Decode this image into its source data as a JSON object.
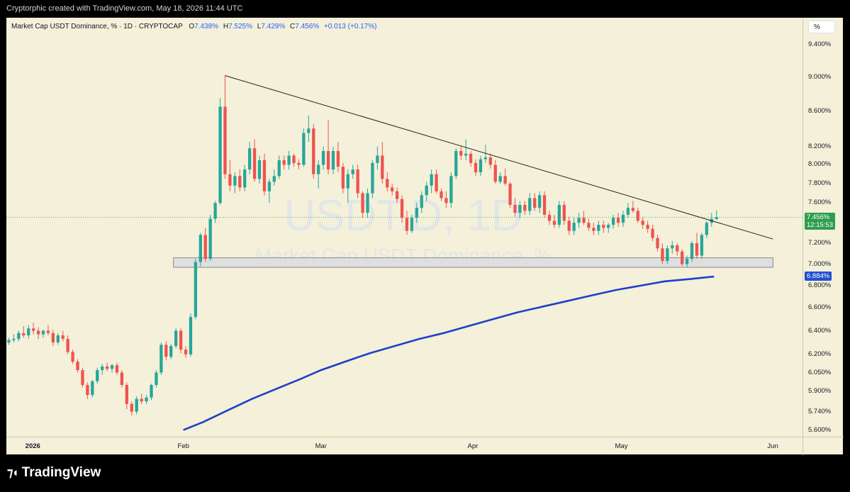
{
  "header": {
    "caption": "Cryptorphic created with TradingView.com, May 18, 2026 11:44 UTC"
  },
  "legend": {
    "symbol": "Market Cap USDT Dominance, % · 1D · CRYPTOCAP",
    "o_label": "O",
    "o_value": "7.438%",
    "h_label": "H",
    "h_value": "7.525%",
    "l_label": "L",
    "l_value": "7.429%",
    "c_label": "C",
    "c_value": "7.456%",
    "change": "+0.013 (+0.17%)"
  },
  "scale_button": "%",
  "watermark": {
    "line1": "USDT.D, 1D",
    "line2": "Market Cap USDT Dominance, %"
  },
  "price_tags": {
    "last": "7.456%",
    "countdown": "12:15:53",
    "ma": "6.884%",
    "last_color": "#2e9e4d",
    "ma_color": "#1f4fd1"
  },
  "branding": {
    "logo_text": "TradingView",
    "logo_icon": "tradingview-logo-icon"
  },
  "colors": {
    "up": "#26a69a",
    "down": "#ef5350",
    "ma": "#1f3fc9",
    "trendline": "#222222",
    "support_zone": "#d9dae2"
  },
  "chart_data": {
    "type": "candlestick",
    "title": "Market Cap USDT Dominance, %",
    "interval": "1D",
    "source": "CRYPTOCAP",
    "y_axis": {
      "scale": "log",
      "ylim": [
        5.55,
        9.75
      ],
      "ticks": [
        "9.400%",
        "9.000%",
        "8.600%",
        "8.200%",
        "8.000%",
        "7.800%",
        "7.600%",
        "7.200%",
        "7.000%",
        "6.800%",
        "6.600%",
        "6.400%",
        "6.200%",
        "6.050%",
        "5.900%",
        "5.740%",
        "5.600%"
      ]
    },
    "x_axis": {
      "range": [
        "2025-12-27",
        "2026-06-07"
      ],
      "ticks": [
        {
          "date": "2026-01-01",
          "label": "2026",
          "bold": true
        },
        {
          "date": "2026-02-01",
          "label": "Feb",
          "bold": false
        },
        {
          "date": "2026-03-01",
          "label": "Mar",
          "bold": false
        },
        {
          "date": "2026-04-01",
          "label": "Apr",
          "bold": false
        },
        {
          "date": "2026-05-01",
          "label": "May",
          "bold": false
        },
        {
          "date": "2026-06-01",
          "label": "Jun",
          "bold": false
        }
      ]
    },
    "candles": [
      [
        "2025-12-27",
        6.3,
        6.34,
        6.28,
        6.32
      ],
      [
        "2025-12-28",
        6.32,
        6.37,
        6.3,
        6.33
      ],
      [
        "2025-12-29",
        6.33,
        6.4,
        6.31,
        6.38
      ],
      [
        "2025-12-30",
        6.38,
        6.44,
        6.34,
        6.36
      ],
      [
        "2025-12-31",
        6.36,
        6.45,
        6.33,
        6.42
      ],
      [
        "2026-01-01",
        6.42,
        6.47,
        6.37,
        6.4
      ],
      [
        "2026-01-02",
        6.4,
        6.43,
        6.33,
        6.37
      ],
      [
        "2026-01-03",
        6.37,
        6.41,
        6.34,
        6.4
      ],
      [
        "2026-01-04",
        6.4,
        6.45,
        6.36,
        6.38
      ],
      [
        "2026-01-05",
        6.38,
        6.41,
        6.27,
        6.3
      ],
      [
        "2026-01-06",
        6.3,
        6.38,
        6.28,
        6.36
      ],
      [
        "2026-01-07",
        6.36,
        6.4,
        6.31,
        6.33
      ],
      [
        "2026-01-08",
        6.33,
        6.36,
        6.2,
        6.22
      ],
      [
        "2026-01-09",
        6.22,
        6.24,
        6.12,
        6.14
      ],
      [
        "2026-01-10",
        6.14,
        6.16,
        6.05,
        6.07
      ],
      [
        "2026-01-11",
        6.07,
        6.09,
        5.93,
        5.95
      ],
      [
        "2026-01-12",
        5.95,
        5.97,
        5.84,
        5.87
      ],
      [
        "2026-01-13",
        5.87,
        5.99,
        5.85,
        5.98
      ],
      [
        "2026-01-14",
        5.98,
        6.09,
        5.96,
        6.07
      ],
      [
        "2026-01-15",
        6.07,
        6.12,
        6.03,
        6.1
      ],
      [
        "2026-01-16",
        6.1,
        6.13,
        6.06,
        6.08
      ],
      [
        "2026-01-17",
        6.08,
        6.12,
        6.05,
        6.11
      ],
      [
        "2026-01-18",
        6.11,
        6.13,
        6.03,
        6.05
      ],
      [
        "2026-01-19",
        6.05,
        6.07,
        5.93,
        5.95
      ],
      [
        "2026-01-20",
        5.95,
        5.97,
        5.76,
        5.8
      ],
      [
        "2026-01-21",
        5.8,
        5.82,
        5.71,
        5.74
      ],
      [
        "2026-01-22",
        5.74,
        5.86,
        5.72,
        5.84
      ],
      [
        "2026-01-23",
        5.84,
        5.88,
        5.8,
        5.82
      ],
      [
        "2026-01-24",
        5.82,
        5.87,
        5.8,
        5.85
      ],
      [
        "2026-01-25",
        5.85,
        5.96,
        5.83,
        5.95
      ],
      [
        "2026-01-26",
        5.95,
        6.07,
        5.93,
        6.05
      ],
      [
        "2026-01-27",
        6.05,
        6.3,
        6.03,
        6.28
      ],
      [
        "2026-01-28",
        6.28,
        6.31,
        6.15,
        6.18
      ],
      [
        "2026-01-29",
        6.18,
        6.29,
        6.16,
        6.27
      ],
      [
        "2026-01-30",
        6.27,
        6.42,
        6.25,
        6.4
      ],
      [
        "2026-01-31",
        6.4,
        6.42,
        6.21,
        6.24
      ],
      [
        "2026-02-01",
        6.24,
        6.27,
        6.17,
        6.2
      ],
      [
        "2026-02-02",
        6.2,
        6.55,
        6.18,
        6.52
      ],
      [
        "2026-02-03",
        6.52,
        7.05,
        6.5,
        7.02
      ],
      [
        "2026-02-04",
        7.02,
        7.3,
        6.98,
        7.28
      ],
      [
        "2026-02-05",
        7.28,
        7.35,
        7.02,
        7.05
      ],
      [
        "2026-02-06",
        7.05,
        7.48,
        7.03,
        7.44
      ],
      [
        "2026-02-07",
        7.44,
        7.62,
        7.4,
        7.6
      ],
      [
        "2026-02-08",
        7.6,
        8.75,
        7.58,
        8.65
      ],
      [
        "2026-02-09",
        8.65,
        9.02,
        7.85,
        7.9
      ],
      [
        "2026-02-10",
        7.9,
        8.05,
        7.72,
        7.78
      ],
      [
        "2026-02-11",
        7.78,
        7.92,
        7.7,
        7.88
      ],
      [
        "2026-02-12",
        7.88,
        7.95,
        7.72,
        7.76
      ],
      [
        "2026-02-13",
        7.76,
        8.0,
        7.72,
        7.95
      ],
      [
        "2026-02-14",
        7.95,
        8.25,
        7.9,
        8.18
      ],
      [
        "2026-02-15",
        8.18,
        8.28,
        7.82,
        7.85
      ],
      [
        "2026-02-16",
        7.85,
        8.1,
        7.8,
        8.05
      ],
      [
        "2026-02-17",
        8.05,
        8.12,
        7.68,
        7.72
      ],
      [
        "2026-02-18",
        7.72,
        7.85,
        7.6,
        7.82
      ],
      [
        "2026-02-19",
        7.82,
        7.95,
        7.78,
        7.88
      ],
      [
        "2026-02-20",
        7.88,
        8.1,
        7.85,
        8.05
      ],
      [
        "2026-02-21",
        8.05,
        8.1,
        7.95,
        8.0
      ],
      [
        "2026-02-22",
        8.0,
        8.15,
        7.95,
        8.1
      ],
      [
        "2026-02-23",
        8.1,
        8.12,
        7.98,
        8.02
      ],
      [
        "2026-02-24",
        8.02,
        8.06,
        7.95,
        8.0
      ],
      [
        "2026-02-25",
        8.0,
        8.4,
        7.98,
        8.35
      ],
      [
        "2026-02-26",
        8.35,
        8.55,
        8.25,
        8.4
      ],
      [
        "2026-02-27",
        8.4,
        8.45,
        7.85,
        7.9
      ],
      [
        "2026-02-28",
        7.9,
        8.05,
        7.75,
        8.0
      ],
      [
        "2026-03-01",
        8.0,
        8.2,
        7.95,
        8.15
      ],
      [
        "2026-03-02",
        8.15,
        8.5,
        7.9,
        7.95
      ],
      [
        "2026-03-03",
        7.95,
        8.2,
        7.9,
        8.15
      ],
      [
        "2026-03-04",
        8.15,
        8.25,
        7.92,
        7.98
      ],
      [
        "2026-03-05",
        7.98,
        8.02,
        7.7,
        7.75
      ],
      [
        "2026-03-06",
        7.75,
        7.95,
        7.6,
        7.9
      ],
      [
        "2026-03-07",
        7.9,
        8.0,
        7.85,
        7.95
      ],
      [
        "2026-03-08",
        7.95,
        8.0,
        7.65,
        7.7
      ],
      [
        "2026-03-09",
        7.7,
        7.72,
        7.45,
        7.5
      ],
      [
        "2026-03-10",
        7.5,
        7.75,
        7.45,
        7.7
      ],
      [
        "2026-03-11",
        7.7,
        8.05,
        7.65,
        8.02
      ],
      [
        "2026-03-12",
        8.02,
        8.2,
        7.95,
        8.1
      ],
      [
        "2026-03-13",
        8.1,
        8.25,
        7.8,
        7.85
      ],
      [
        "2026-03-14",
        7.85,
        7.92,
        7.72,
        7.76
      ],
      [
        "2026-03-15",
        7.76,
        7.8,
        7.68,
        7.72
      ],
      [
        "2026-03-16",
        7.72,
        7.76,
        7.6,
        7.64
      ],
      [
        "2026-03-17",
        7.64,
        7.68,
        7.4,
        7.45
      ],
      [
        "2026-03-18",
        7.45,
        7.52,
        7.28,
        7.32
      ],
      [
        "2026-03-19",
        7.32,
        7.48,
        7.3,
        7.45
      ],
      [
        "2026-03-20",
        7.45,
        7.6,
        7.4,
        7.55
      ],
      [
        "2026-03-21",
        7.55,
        7.72,
        7.5,
        7.68
      ],
      [
        "2026-03-22",
        7.68,
        7.82,
        7.62,
        7.78
      ],
      [
        "2026-03-23",
        7.78,
        7.95,
        7.7,
        7.9
      ],
      [
        "2026-03-24",
        7.9,
        7.95,
        7.7,
        7.72
      ],
      [
        "2026-03-25",
        7.72,
        7.75,
        7.62,
        7.65
      ],
      [
        "2026-03-26",
        7.65,
        7.72,
        7.55,
        7.6
      ],
      [
        "2026-03-27",
        7.6,
        7.92,
        7.55,
        7.88
      ],
      [
        "2026-03-28",
        7.88,
        8.18,
        7.85,
        8.15
      ],
      [
        "2026-03-29",
        8.15,
        8.2,
        8.05,
        8.1
      ],
      [
        "2026-03-30",
        8.1,
        8.28,
        8.05,
        8.12
      ],
      [
        "2026-03-31",
        8.12,
        8.15,
        7.98,
        8.02
      ],
      [
        "2026-04-01",
        8.02,
        8.06,
        7.88,
        7.92
      ],
      [
        "2026-04-02",
        7.92,
        8.1,
        7.88,
        8.06
      ],
      [
        "2026-04-03",
        8.06,
        8.22,
        8.02,
        8.08
      ],
      [
        "2026-04-04",
        8.08,
        8.12,
        7.96,
        8.0
      ],
      [
        "2026-04-05",
        8.0,
        8.05,
        7.8,
        7.82
      ],
      [
        "2026-04-06",
        7.82,
        7.92,
        7.8,
        7.88
      ],
      [
        "2026-04-07",
        7.88,
        7.96,
        7.78,
        7.8
      ],
      [
        "2026-04-08",
        7.8,
        7.82,
        7.55,
        7.58
      ],
      [
        "2026-04-09",
        7.58,
        7.65,
        7.46,
        7.5
      ],
      [
        "2026-04-10",
        7.5,
        7.62,
        7.45,
        7.58
      ],
      [
        "2026-04-11",
        7.58,
        7.62,
        7.48,
        7.52
      ],
      [
        "2026-04-12",
        7.52,
        7.7,
        7.48,
        7.65
      ],
      [
        "2026-04-13",
        7.65,
        7.7,
        7.52,
        7.55
      ],
      [
        "2026-04-14",
        7.55,
        7.72,
        7.5,
        7.68
      ],
      [
        "2026-04-15",
        7.68,
        7.72,
        7.45,
        7.48
      ],
      [
        "2026-04-16",
        7.48,
        7.52,
        7.38,
        7.42
      ],
      [
        "2026-04-17",
        7.42,
        7.48,
        7.35,
        7.38
      ],
      [
        "2026-04-18",
        7.38,
        7.62,
        7.35,
        7.58
      ],
      [
        "2026-04-19",
        7.58,
        7.62,
        7.38,
        7.42
      ],
      [
        "2026-04-20",
        7.42,
        7.46,
        7.28,
        7.32
      ],
      [
        "2026-04-21",
        7.32,
        7.45,
        7.28,
        7.4
      ],
      [
        "2026-04-22",
        7.4,
        7.5,
        7.35,
        7.45
      ],
      [
        "2026-04-23",
        7.45,
        7.52,
        7.38,
        7.4
      ],
      [
        "2026-04-24",
        7.4,
        7.44,
        7.32,
        7.35
      ],
      [
        "2026-04-25",
        7.35,
        7.4,
        7.28,
        7.32
      ],
      [
        "2026-04-26",
        7.32,
        7.42,
        7.28,
        7.38
      ],
      [
        "2026-04-27",
        7.38,
        7.42,
        7.3,
        7.35
      ],
      [
        "2026-04-28",
        7.35,
        7.4,
        7.3,
        7.38
      ],
      [
        "2026-04-29",
        7.38,
        7.48,
        7.34,
        7.45
      ],
      [
        "2026-04-30",
        7.45,
        7.5,
        7.36,
        7.4
      ],
      [
        "2026-05-01",
        7.4,
        7.52,
        7.36,
        7.48
      ],
      [
        "2026-05-02",
        7.48,
        7.6,
        7.45,
        7.55
      ],
      [
        "2026-05-03",
        7.55,
        7.62,
        7.5,
        7.52
      ],
      [
        "2026-05-04",
        7.52,
        7.55,
        7.4,
        7.42
      ],
      [
        "2026-05-05",
        7.42,
        7.46,
        7.34,
        7.38
      ],
      [
        "2026-05-06",
        7.38,
        7.42,
        7.3,
        7.34
      ],
      [
        "2026-05-07",
        7.34,
        7.38,
        7.22,
        7.25
      ],
      [
        "2026-05-08",
        7.25,
        7.28,
        7.12,
        7.15
      ],
      [
        "2026-05-09",
        7.15,
        7.2,
        7.0,
        7.03
      ],
      [
        "2026-05-10",
        7.03,
        7.18,
        7.0,
        7.15
      ],
      [
        "2026-05-11",
        7.15,
        7.22,
        7.1,
        7.18
      ],
      [
        "2026-05-12",
        7.18,
        7.2,
        7.08,
        7.12
      ],
      [
        "2026-05-13",
        7.12,
        7.14,
        6.98,
        7.0
      ],
      [
        "2026-05-14",
        7.0,
        7.08,
        6.97,
        7.05
      ],
      [
        "2026-05-15",
        7.05,
        7.22,
        7.02,
        7.2
      ],
      [
        "2026-05-16",
        7.2,
        7.3,
        7.05,
        7.08
      ],
      [
        "2026-05-17",
        7.08,
        7.3,
        7.05,
        7.28
      ],
      [
        "2026-05-18",
        7.28,
        7.42,
        7.25,
        7.4
      ],
      [
        "2026-05-19",
        7.4,
        7.5,
        7.36,
        7.44
      ],
      [
        "2026-05-20",
        7.438,
        7.525,
        7.429,
        7.456
      ]
    ],
    "moving_average": {
      "name": "MA",
      "points": [
        [
          "2026-02-01",
          5.6
        ],
        [
          "2026-02-05",
          5.66
        ],
        [
          "2026-02-10",
          5.75
        ],
        [
          "2026-02-15",
          5.84
        ],
        [
          "2026-02-20",
          5.92
        ],
        [
          "2026-02-25",
          6.0
        ],
        [
          "2026-03-01",
          6.07
        ],
        [
          "2026-03-06",
          6.14
        ],
        [
          "2026-03-11",
          6.21
        ],
        [
          "2026-03-16",
          6.27
        ],
        [
          "2026-03-21",
          6.33
        ],
        [
          "2026-03-26",
          6.38
        ],
        [
          "2026-03-31",
          6.44
        ],
        [
          "2026-04-05",
          6.5
        ],
        [
          "2026-04-10",
          6.56
        ],
        [
          "2026-04-15",
          6.61
        ],
        [
          "2026-04-20",
          6.66
        ],
        [
          "2026-04-25",
          6.71
        ],
        [
          "2026-04-30",
          6.76
        ],
        [
          "2026-05-05",
          6.8
        ],
        [
          "2026-05-10",
          6.84
        ],
        [
          "2026-05-15",
          6.86
        ],
        [
          "2026-05-20",
          6.884
        ]
      ]
    },
    "trendline": {
      "from": [
        "2026-02-09",
        9.02
      ],
      "to": [
        "2026-06-01",
        7.24
      ]
    },
    "support_zone": {
      "from": "2026-01-30",
      "to": "2026-06-01",
      "low": 6.97,
      "high": 7.06
    },
    "last_price_line": 7.456,
    "grid": false
  }
}
